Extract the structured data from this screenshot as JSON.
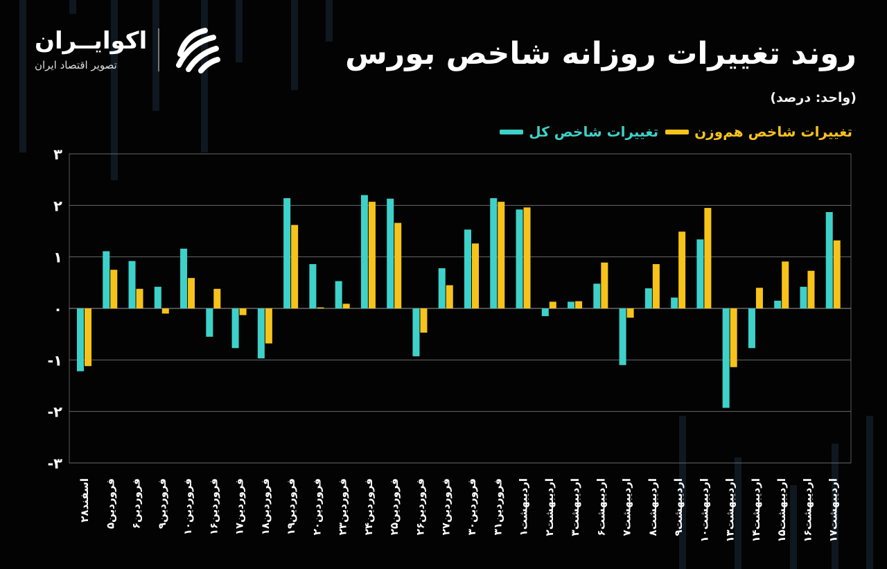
{
  "brand": {
    "name": "اکوایــران",
    "tagline": "تصویر اقتصاد ایران"
  },
  "colors": {
    "background": "#030303",
    "series1": "#3ed1c9",
    "series2": "#f7c31a",
    "grid": "#6a6a6a"
  },
  "icons": {
    "logo": "eco-iran-logo-icon"
  },
  "chart_data": {
    "type": "bar",
    "title": "روند تغییرات روزانه شاخص بورس",
    "subtitle": "(واحد: درصد)",
    "ylim": [
      -3,
      3
    ],
    "yticks": [
      "-۳",
      "-۲",
      "-۱",
      "۰",
      "۱",
      "۲",
      "۳"
    ],
    "grid": true,
    "legend_position": "top-right",
    "categories": [
      "اسفند۲۸",
      "فروردین۵",
      "فروردین۶",
      "فروردین۹",
      "فروردین۱۰",
      "فروردین۱۶",
      "فروردین۱۷",
      "فروردین۱۸",
      "فروردین۱۹",
      "فروردین۲۰",
      "فروردین۲۳",
      "فروردین۲۴",
      "فروردین۲۵",
      "فروردین۲۶",
      "فروردین۲۷",
      "فروردین۳۰",
      "فروردین۳۱",
      "اردیبهشت۱",
      "اردیبهشت۲",
      "اردیبهشت۳",
      "اردیبهشت۶",
      "اردیبهشت۷",
      "اردیبهشت۸",
      "اردیبهشت۹",
      "اردیبهشت۱۰",
      "اردیبهشت۱۳",
      "اردیبهشت۱۴",
      "اردیبهشت۱۵",
      "اردیبهشت۱۶",
      "اردیبهشت۱۷"
    ],
    "series": [
      {
        "name": "تغییرات شاخص کل",
        "values": [
          -1.22,
          1.11,
          0.92,
          0.42,
          1.16,
          -0.55,
          -0.77,
          -0.97,
          2.14,
          0.86,
          0.53,
          2.2,
          2.13,
          -0.93,
          0.78,
          1.53,
          2.14,
          1.92,
          -0.15,
          0.13,
          0.48,
          -1.1,
          0.39,
          0.21,
          1.34,
          -1.93,
          -0.77,
          0.15,
          0.42,
          1.87
        ]
      },
      {
        "name": "تغییرات شاخص هم‌وزن",
        "values": [
          -1.12,
          0.75,
          0.38,
          -0.1,
          0.59,
          0.38,
          -0.13,
          -0.68,
          1.62,
          0.02,
          0.09,
          2.07,
          1.66,
          -0.47,
          0.45,
          1.26,
          2.07,
          1.96,
          0.13,
          0.14,
          0.89,
          -0.18,
          0.86,
          1.49,
          1.95,
          -1.14,
          0.4,
          0.91,
          0.73,
          1.32
        ]
      }
    ]
  }
}
